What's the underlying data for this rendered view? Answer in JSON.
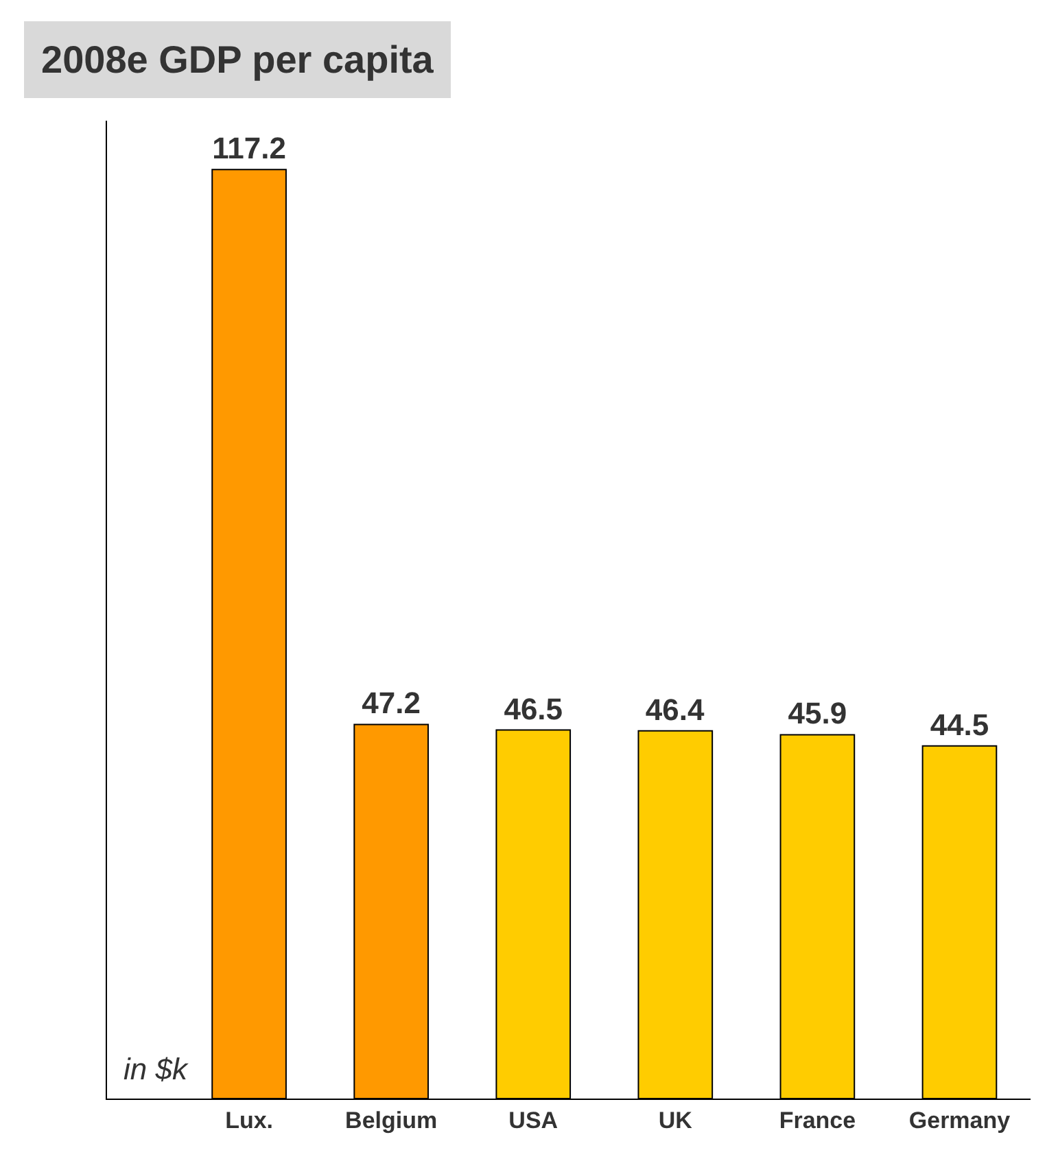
{
  "chart_data": {
    "type": "bar",
    "title": "2008e GDP per capita",
    "categories": [
      "Lux.",
      "Belgium",
      "USA",
      "UK",
      "France",
      "Germany"
    ],
    "values": [
      117.2,
      47.2,
      46.5,
      46.4,
      45.9,
      44.5
    ],
    "colors": [
      "#ff9900",
      "#ff9900",
      "#ffcc00",
      "#ffcc00",
      "#ffcc00",
      "#ffcc00"
    ],
    "data_labels": true,
    "annotations": [
      "in $k"
    ]
  }
}
